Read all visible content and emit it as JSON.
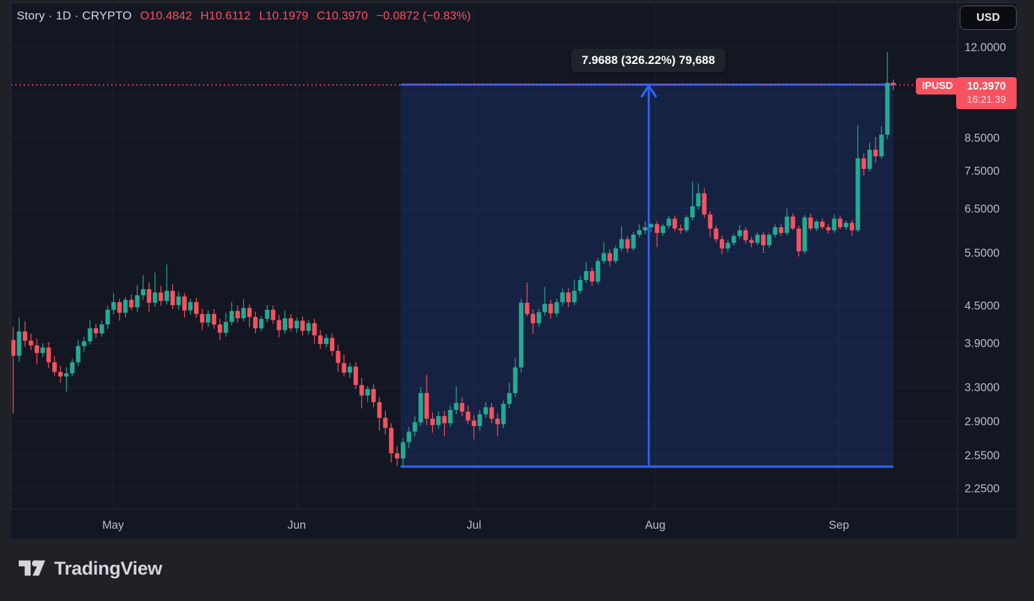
{
  "header": {
    "symbol_title": "Story · 1D · CRYPTO",
    "open": "O10.4842",
    "high": "H10.6112",
    "low": "L10.1979",
    "close": "C10.3970",
    "change": "−0.0872 (−0.83%)"
  },
  "currency_button": {
    "label": "USD"
  },
  "measure_tooltip": {
    "text": "7.9688 (326.22%) 79,688"
  },
  "price_label": {
    "symbol": "IPUSD",
    "price": "10.3970",
    "countdown": "16:21:39"
  },
  "logo": {
    "text": "TradingView"
  },
  "colors": {
    "page_bg": "#1f2126",
    "chart_bg": "#131722",
    "border": "#2a2e39",
    "grid": "#1e2230",
    "up": "#22ab94",
    "down": "#f7525f",
    "blue": "#2962ff",
    "axis_text": "#b9bcc5",
    "tool_fill": "rgba(41,98,255,0.15)",
    "flag_red": "#f7525f"
  },
  "chart_data": {
    "type": "candlestick",
    "title": "Story / IPUSD",
    "timeframe": "1D",
    "exchange": "CRYPTO",
    "current_price": 10.397,
    "last_ohlc": {
      "open": 10.4842,
      "high": 10.6112,
      "low": 10.1979,
      "close": 10.397,
      "change": -0.0872,
      "change_pct": -0.83
    },
    "y_axis": {
      "scale": "log",
      "range_top": 14.2,
      "range_bottom": 2.078,
      "ticks": [
        {
          "label": "12.0000",
          "value": 12.0
        },
        {
          "label": "8.5000",
          "value": 8.5
        },
        {
          "label": "7.5000",
          "value": 7.5
        },
        {
          "label": "6.5000",
          "value": 6.5
        },
        {
          "label": "5.5000",
          "value": 5.5
        },
        {
          "label": "4.5000",
          "value": 4.5
        },
        {
          "label": "3.9000",
          "value": 3.9
        },
        {
          "label": "3.3000",
          "value": 3.3
        },
        {
          "label": "2.9000",
          "value": 2.9
        },
        {
          "label": "2.5500",
          "value": 2.55
        },
        {
          "label": "2.2500",
          "value": 2.25
        }
      ],
      "gridline_only": [
        10.0
      ]
    },
    "x_axis": {
      "month_ticks": [
        {
          "label": "May",
          "index": 16.9
        },
        {
          "label": "Jun",
          "index": 48
        },
        {
          "label": "Jul",
          "index": 78
        },
        {
          "label": "Aug",
          "index": 108.7
        },
        {
          "label": "Sep",
          "index": 139.8
        }
      ]
    },
    "measurement": {
      "price_from": 2.4428,
      "price_to": 10.4116,
      "change": 7.9688,
      "percent": 326.22,
      "extra_display": "79,688",
      "start_index": 66,
      "end_index": 149,
      "arrow_index": 107.6
    },
    "candles": [
      [
        3.95,
        4.15,
        2.99,
        3.72
      ],
      [
        3.72,
        4.3,
        3.64,
        4.08
      ],
      [
        4.08,
        4.24,
        3.85,
        3.94
      ],
      [
        3.94,
        4.05,
        3.8,
        3.87
      ],
      [
        3.87,
        3.97,
        3.6,
        3.76
      ],
      [
        3.76,
        3.9,
        3.7,
        3.84
      ],
      [
        3.84,
        3.92,
        3.55,
        3.63
      ],
      [
        3.63,
        3.72,
        3.45,
        3.5
      ],
      [
        3.5,
        3.58,
        3.36,
        3.44
      ],
      [
        3.44,
        3.56,
        3.25,
        3.48
      ],
      [
        3.48,
        3.68,
        3.44,
        3.63
      ],
      [
        3.63,
        3.95,
        3.58,
        3.86
      ],
      [
        3.86,
        4.0,
        3.78,
        3.93
      ],
      [
        3.93,
        4.26,
        3.88,
        4.13
      ],
      [
        4.13,
        4.2,
        3.98,
        4.05
      ],
      [
        4.05,
        4.25,
        4.0,
        4.19
      ],
      [
        4.19,
        4.5,
        4.12,
        4.43
      ],
      [
        4.43,
        4.72,
        4.35,
        4.56
      ],
      [
        4.56,
        4.62,
        4.25,
        4.38
      ],
      [
        4.38,
        4.65,
        4.3,
        4.6
      ],
      [
        4.6,
        4.7,
        4.42,
        4.47
      ],
      [
        4.47,
        4.86,
        4.4,
        4.68
      ],
      [
        4.68,
        5.05,
        4.6,
        4.79
      ],
      [
        4.79,
        4.92,
        4.4,
        4.55
      ],
      [
        4.55,
        5.1,
        4.48,
        4.73
      ],
      [
        4.73,
        4.85,
        4.5,
        4.58
      ],
      [
        4.58,
        5.26,
        4.52,
        4.76
      ],
      [
        4.76,
        4.88,
        4.44,
        4.51
      ],
      [
        4.51,
        4.75,
        4.42,
        4.66
      ],
      [
        4.66,
        4.72,
        4.3,
        4.42
      ],
      [
        4.42,
        4.62,
        4.35,
        4.56
      ],
      [
        4.56,
        4.64,
        4.3,
        4.36
      ],
      [
        4.36,
        4.45,
        4.1,
        4.22
      ],
      [
        4.22,
        4.42,
        4.15,
        4.36
      ],
      [
        4.36,
        4.44,
        4.12,
        4.19
      ],
      [
        4.19,
        4.28,
        3.95,
        4.06
      ],
      [
        4.06,
        4.38,
        4.0,
        4.23
      ],
      [
        4.23,
        4.56,
        4.18,
        4.41
      ],
      [
        4.41,
        4.5,
        4.22,
        4.29
      ],
      [
        4.29,
        4.61,
        4.24,
        4.46
      ],
      [
        4.46,
        4.52,
        4.15,
        4.31
      ],
      [
        4.31,
        4.4,
        4.05,
        4.13
      ],
      [
        4.13,
        4.33,
        4.08,
        4.28
      ],
      [
        4.28,
        4.51,
        4.22,
        4.43
      ],
      [
        4.43,
        4.5,
        4.2,
        4.26
      ],
      [
        4.26,
        4.34,
        3.99,
        4.1
      ],
      [
        4.1,
        4.42,
        4.05,
        4.29
      ],
      [
        4.29,
        4.36,
        4.08,
        4.13
      ],
      [
        4.13,
        4.3,
        4.06,
        4.25
      ],
      [
        4.25,
        4.32,
        4.02,
        4.09
      ],
      [
        4.09,
        4.26,
        4.03,
        4.21
      ],
      [
        4.21,
        4.28,
        3.9,
        4.02
      ],
      [
        4.02,
        4.1,
        3.82,
        3.89
      ],
      [
        3.89,
        4.04,
        3.84,
        3.98
      ],
      [
        3.98,
        4.05,
        3.72,
        3.79
      ],
      [
        3.79,
        3.88,
        3.5,
        3.62
      ],
      [
        3.62,
        3.74,
        3.44,
        3.49
      ],
      [
        3.49,
        3.62,
        3.42,
        3.57
      ],
      [
        3.57,
        3.63,
        3.28,
        3.33
      ],
      [
        3.33,
        3.42,
        3.05,
        3.2
      ],
      [
        3.2,
        3.32,
        3.12,
        3.28
      ],
      [
        3.28,
        3.34,
        3.06,
        3.12
      ],
      [
        3.12,
        3.18,
        2.8,
        2.94
      ],
      [
        2.94,
        3.02,
        2.76,
        2.83
      ],
      [
        2.83,
        2.88,
        2.48,
        2.57
      ],
      [
        2.57,
        2.64,
        2.45,
        2.52
      ],
      [
        2.52,
        2.72,
        2.4428,
        2.68
      ],
      [
        2.68,
        2.84,
        2.62,
        2.79
      ],
      [
        2.79,
        2.96,
        2.74,
        2.89
      ],
      [
        2.89,
        3.3,
        2.85,
        3.23
      ],
      [
        3.23,
        3.46,
        2.86,
        2.93
      ],
      [
        2.93,
        3.0,
        2.78,
        2.86
      ],
      [
        2.86,
        3.01,
        2.82,
        2.96
      ],
      [
        2.96,
        3.02,
        2.74,
        2.88
      ],
      [
        2.88,
        3.08,
        2.84,
        3.03
      ],
      [
        3.03,
        3.31,
        2.98,
        3.11
      ],
      [
        3.11,
        3.18,
        2.96,
        3.01
      ],
      [
        3.01,
        3.08,
        2.87,
        2.91
      ],
      [
        2.91,
        2.97,
        2.71,
        2.85
      ],
      [
        2.85,
        3.03,
        2.8,
        2.98
      ],
      [
        2.98,
        3.12,
        2.94,
        3.06
      ],
      [
        3.06,
        3.11,
        2.88,
        2.93
      ],
      [
        2.93,
        2.99,
        2.74,
        2.87
      ],
      [
        2.87,
        3.14,
        2.83,
        3.1
      ],
      [
        3.1,
        3.36,
        3.05,
        3.23
      ],
      [
        3.23,
        3.69,
        3.18,
        3.56
      ],
      [
        3.56,
        4.62,
        3.49,
        4.55
      ],
      [
        4.55,
        4.91,
        4.32,
        4.36
      ],
      [
        4.36,
        4.44,
        4.04,
        4.21
      ],
      [
        4.21,
        4.45,
        4.15,
        4.39
      ],
      [
        4.39,
        4.83,
        4.33,
        4.53
      ],
      [
        4.53,
        4.6,
        4.28,
        4.37
      ],
      [
        4.37,
        4.62,
        4.31,
        4.56
      ],
      [
        4.56,
        4.8,
        4.5,
        4.73
      ],
      [
        4.73,
        4.81,
        4.47,
        4.56
      ],
      [
        4.56,
        4.97,
        4.51,
        4.76
      ],
      [
        4.76,
        5.04,
        4.7,
        4.96
      ],
      [
        4.96,
        5.31,
        4.9,
        5.13
      ],
      [
        5.13,
        5.2,
        4.85,
        4.93
      ],
      [
        4.93,
        5.4,
        4.88,
        5.33
      ],
      [
        5.33,
        5.73,
        5.27,
        5.49
      ],
      [
        5.49,
        5.57,
        5.23,
        5.33
      ],
      [
        5.33,
        5.65,
        5.28,
        5.59
      ],
      [
        5.59,
        6.09,
        5.53,
        5.79
      ],
      [
        5.79,
        5.86,
        5.5,
        5.59
      ],
      [
        5.59,
        5.95,
        5.54,
        5.89
      ],
      [
        5.89,
        6.13,
        5.83,
        5.99
      ],
      [
        5.99,
        6.2,
        5.91,
        6.06
      ],
      [
        6.06,
        6.16,
        5.95,
        6.13
      ],
      [
        6.13,
        6.2,
        5.62,
        5.93
      ],
      [
        5.93,
        6.14,
        5.87,
        6.09
      ],
      [
        6.09,
        6.32,
        6.02,
        6.26
      ],
      [
        6.26,
        6.33,
        5.97,
        6.03
      ],
      [
        6.03,
        6.12,
        5.91,
        5.99
      ],
      [
        5.99,
        6.34,
        5.94,
        6.29
      ],
      [
        6.29,
        7.21,
        6.22,
        6.56
      ],
      [
        6.56,
        7.16,
        6.48,
        6.89
      ],
      [
        6.89,
        7.02,
        6.28,
        6.36
      ],
      [
        6.36,
        6.44,
        5.84,
        6.03
      ],
      [
        6.03,
        6.1,
        5.72,
        5.79
      ],
      [
        5.79,
        5.87,
        5.47,
        5.59
      ],
      [
        5.59,
        5.78,
        5.52,
        5.71
      ],
      [
        5.71,
        5.92,
        5.65,
        5.86
      ],
      [
        5.86,
        6.11,
        5.8,
        5.99
      ],
      [
        5.99,
        6.06,
        5.7,
        5.77
      ],
      [
        5.77,
        5.84,
        5.62,
        5.71
      ],
      [
        5.71,
        5.94,
        5.66,
        5.89
      ],
      [
        5.89,
        5.95,
        5.5,
        5.66
      ],
      [
        5.66,
        5.93,
        5.6,
        5.89
      ],
      [
        5.89,
        6.12,
        5.83,
        6.06
      ],
      [
        6.06,
        6.13,
        5.86,
        5.93
      ],
      [
        5.93,
        6.5,
        5.87,
        6.31
      ],
      [
        6.31,
        6.39,
        5.99,
        6.03
      ],
      [
        6.03,
        6.1,
        5.42,
        5.53
      ],
      [
        5.53,
        6.35,
        5.47,
        6.29
      ],
      [
        6.29,
        6.38,
        5.98,
        6.03
      ],
      [
        6.03,
        6.24,
        5.97,
        6.19
      ],
      [
        6.19,
        6.26,
        6.01,
        6.06
      ],
      [
        6.06,
        6.13,
        5.92,
        5.99
      ],
      [
        5.99,
        6.36,
        5.93,
        6.26
      ],
      [
        6.26,
        6.33,
        6.01,
        6.06
      ],
      [
        6.06,
        6.21,
        6.0,
        6.16
      ],
      [
        6.16,
        6.23,
        5.87,
        5.99
      ],
      [
        5.99,
        8.93,
        5.95,
        7.87
      ],
      [
        7.87,
        8.02,
        7.37,
        7.56
      ],
      [
        7.56,
        8.36,
        7.49,
        8.13
      ],
      [
        8.13,
        8.53,
        7.74,
        7.93
      ],
      [
        7.93,
        8.89,
        7.86,
        8.61
      ],
      [
        8.61,
        11.78,
        8.46,
        10.48
      ],
      [
        10.4842,
        10.6112,
        10.1979,
        10.397
      ]
    ]
  }
}
